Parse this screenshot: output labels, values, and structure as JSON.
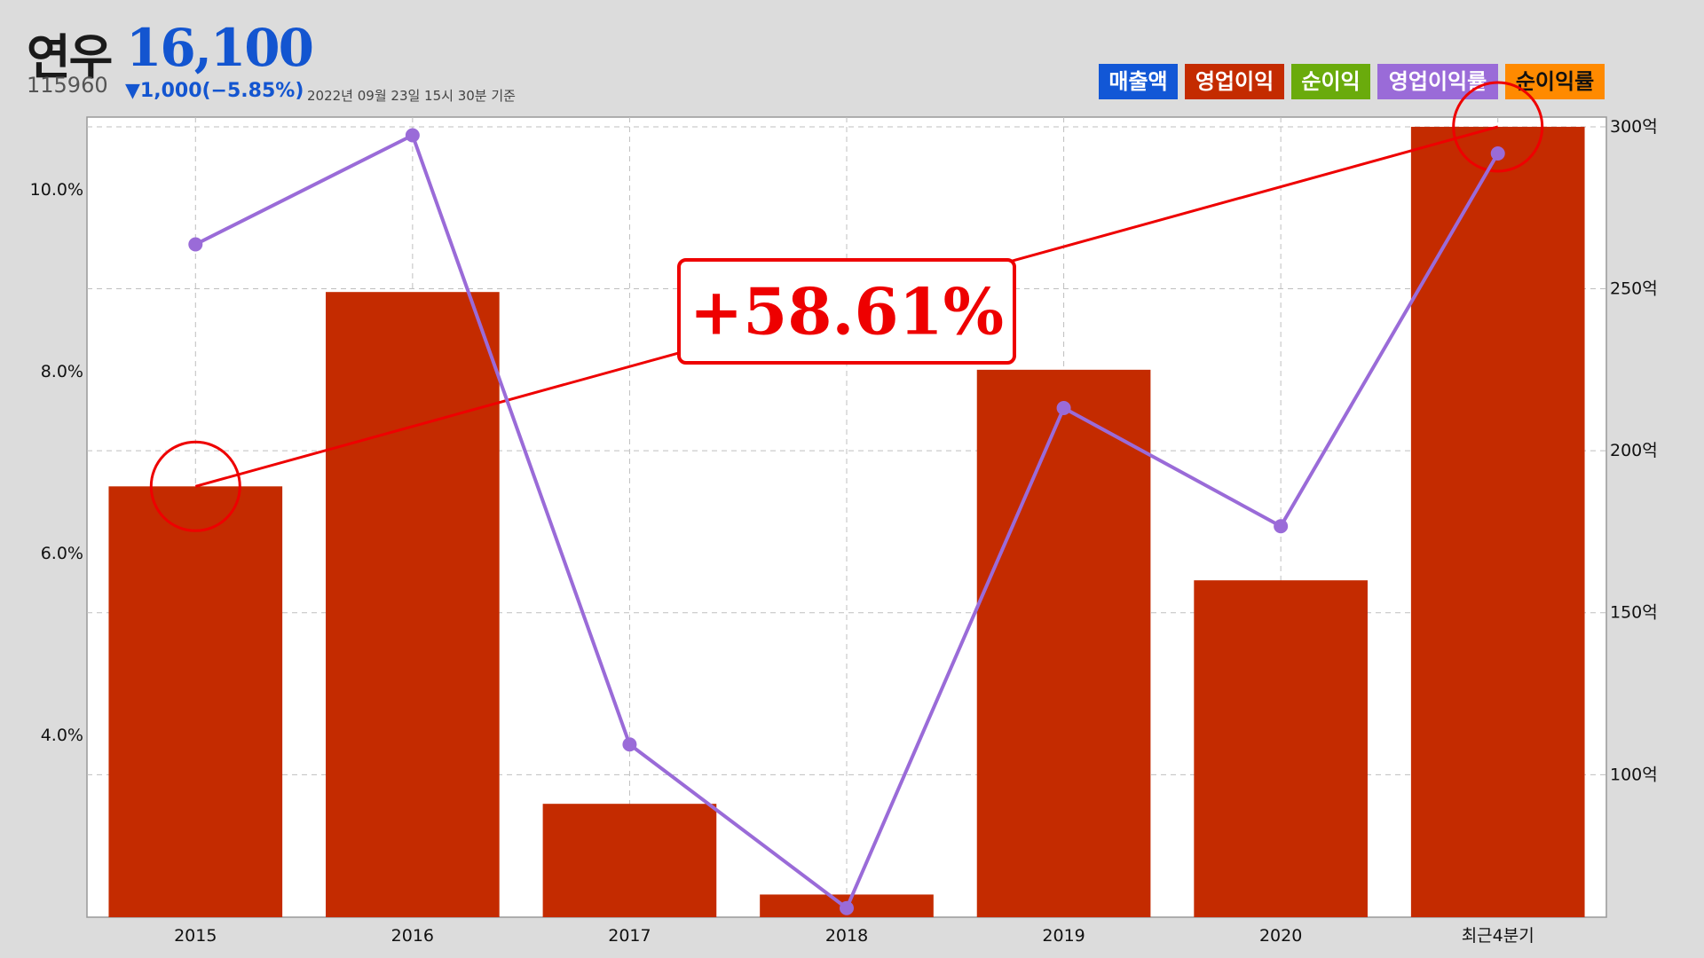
{
  "header": {
    "company": "연우",
    "price": "16,100",
    "code": "115960",
    "change": "▼1,000(−5.85%)",
    "date_note": "2022년 09월 23일 15시 30분 기준"
  },
  "legend": [
    {
      "label": "매출액",
      "color": "#1257d6"
    },
    {
      "label": "영업이익",
      "color": "#c42b00"
    },
    {
      "label": "순이익",
      "color": "#6aab0c"
    },
    {
      "label": "영업이익률",
      "color": "#9a6bd8"
    },
    {
      "label": "순이익률",
      "color": "#ff8a00"
    }
  ],
  "annotation": {
    "text": "+58.61%",
    "color": "#ee0000"
  },
  "chart_data": {
    "type": "bar",
    "categories": [
      "2015",
      "2016",
      "2017",
      "2018",
      "2019",
      "2020",
      "최근4분기"
    ],
    "series": [
      {
        "name": "영업이익",
        "type": "bar",
        "axis": "right",
        "color": "#c42b00",
        "values": [
          189,
          249,
          91,
          63,
          225,
          160,
          300
        ]
      },
      {
        "name": "영업이익률",
        "type": "line",
        "axis": "left",
        "color": "#9a6bd8",
        "values": [
          9.4,
          10.6,
          3.9,
          2.1,
          7.6,
          6.3,
          10.4
        ]
      }
    ],
    "y_left": {
      "min": 2.0,
      "max": 10.8,
      "ticks": [
        4.0,
        6.0,
        8.0,
        10.0
      ],
      "tick_labels": [
        "4.0%",
        "6.0%",
        "8.0%",
        "10.0%"
      ]
    },
    "y_right": {
      "min": 56,
      "max": 303,
      "ticks": [
        100,
        150,
        200,
        250,
        300
      ],
      "tick_labels": [
        "100억",
        "150억",
        "200억",
        "250억",
        "300억"
      ]
    },
    "grid": true,
    "legend_placement": "top-right",
    "highlight": {
      "from_index": 0,
      "to_index": 6,
      "series": "영업이익"
    }
  }
}
